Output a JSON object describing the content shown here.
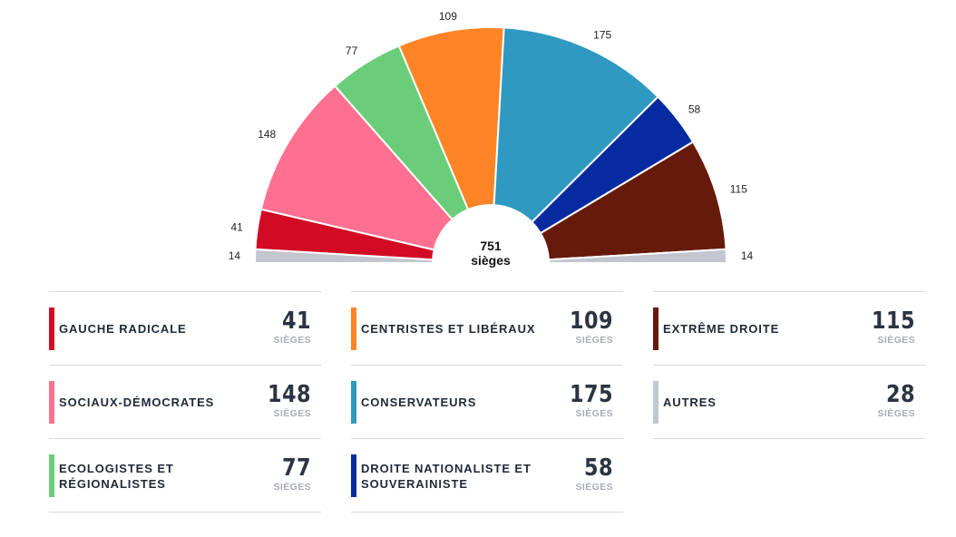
{
  "chart_data": {
    "type": "pie",
    "subtype": "hemicycle",
    "total": "751",
    "total_unit": "sièges",
    "seat_unit_label": "SIÈGES",
    "series": [
      {
        "name": "GAUCHE RADICALE",
        "value": 41,
        "color": "#d20a23"
      },
      {
        "name": "SOCIAUX-DÉMOCRATES",
        "value": 148,
        "color": "#ff7090"
      },
      {
        "name": "ECOLOGISTES ET RÉGIONALISTES",
        "value": 77,
        "color": "#6acd7a"
      },
      {
        "name": "CENTRISTES ET LIBÉRAUX",
        "value": 109,
        "color": "#ff8426"
      },
      {
        "name": "CONSERVATEURS",
        "value": 175,
        "color": "#2f99c1"
      },
      {
        "name": "DROITE NATIONALISTE ET SOUVERAINISTE",
        "value": 58,
        "color": "#062a9f"
      },
      {
        "name": "EXTRÊME DROITE",
        "value": 115,
        "color": "#661a0c"
      },
      {
        "name": "AUTRES",
        "value": 28,
        "color": "#c3c6ce"
      }
    ],
    "arc_order": [
      {
        "label": "14",
        "value": 14,
        "color": "#c3c6ce"
      },
      {
        "label": "41",
        "value": 41,
        "color": "#d20a23"
      },
      {
        "label": "148",
        "value": 148,
        "color": "#ff7090"
      },
      {
        "label": "77",
        "value": 77,
        "color": "#6acd7a"
      },
      {
        "label": "109",
        "value": 109,
        "color": "#ff8426"
      },
      {
        "label": "175",
        "value": 175,
        "color": "#2f99c1"
      },
      {
        "label": "58",
        "value": 58,
        "color": "#062a9f"
      },
      {
        "label": "115",
        "value": 115,
        "color": "#661a0c"
      },
      {
        "label": "14",
        "value": 14,
        "color": "#c3c6ce"
      }
    ],
    "legend_columns": [
      [
        0,
        1,
        2
      ],
      [
        3,
        4,
        5
      ],
      [
        6,
        7
      ]
    ]
  }
}
